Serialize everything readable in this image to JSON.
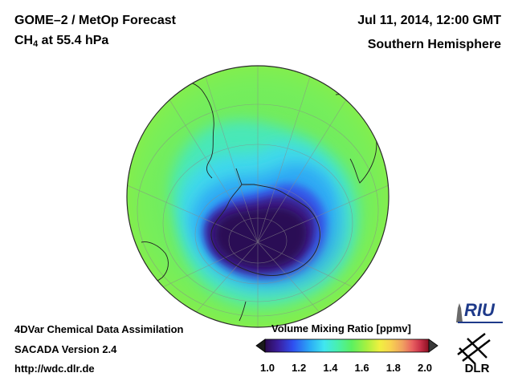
{
  "header": {
    "title_line1": "GOME–2 / MetOp Forecast",
    "species_main": "CH",
    "species_sub": "4",
    "species_rest": " at 55.4 hPa",
    "date": "Jul 11, 2014, 12:00 GMT",
    "region": "Southern Hemisphere"
  },
  "footer": {
    "line1": "4DVar Chemical Data Assimilation",
    "line2": "SACADA Version 2.4",
    "line3": "http://wdc.dlr.de"
  },
  "colorbar": {
    "title": "Volume Mixing Ratio [ppmv]",
    "ticks": [
      "1.0",
      "1.2",
      "1.4",
      "1.6",
      "1.8",
      "2.0"
    ],
    "colors": [
      "#2b0a4e",
      "#3b1e9e",
      "#2f4ff0",
      "#2aa8f6",
      "#40e6f0",
      "#48f0b0",
      "#5cf060",
      "#a8f040",
      "#f0f040",
      "#f8d050",
      "#f0a060",
      "#e86060",
      "#c83048",
      "#8a1020"
    ]
  },
  "logos": {
    "riu": "RIU",
    "dlr": "DLR"
  },
  "colors": {
    "ocean_outer": "#78ec52",
    "ocean_mid": "#3ccfd0",
    "ocean_low": "#2c8ff2",
    "vortex": "#33126e",
    "vortex_core": "#2a0b55",
    "coast": "#222222",
    "grid": "#8a8a8a"
  }
}
